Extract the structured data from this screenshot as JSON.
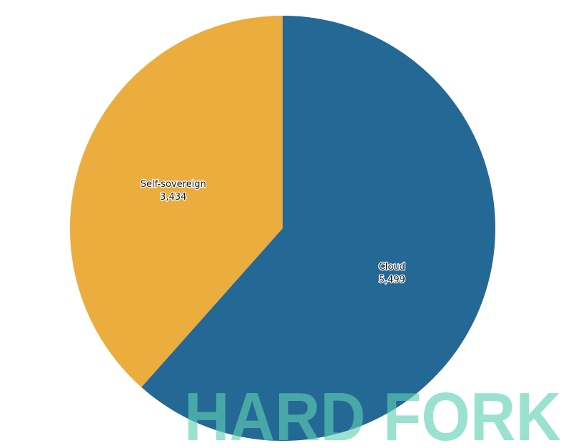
{
  "chart_data": {
    "type": "pie",
    "title": "",
    "start_angle": "top, clockwise",
    "slices": [
      {
        "label": "Cloud",
        "value": 5499,
        "value_label": "5,499",
        "color": "#246895"
      },
      {
        "label": "Self-sovereign",
        "value": 3434,
        "value_label": "3,434",
        "color": "#EBAD3E"
      }
    ]
  },
  "watermark": {
    "text": "HARD FORK",
    "color": "#5fd0b3"
  }
}
